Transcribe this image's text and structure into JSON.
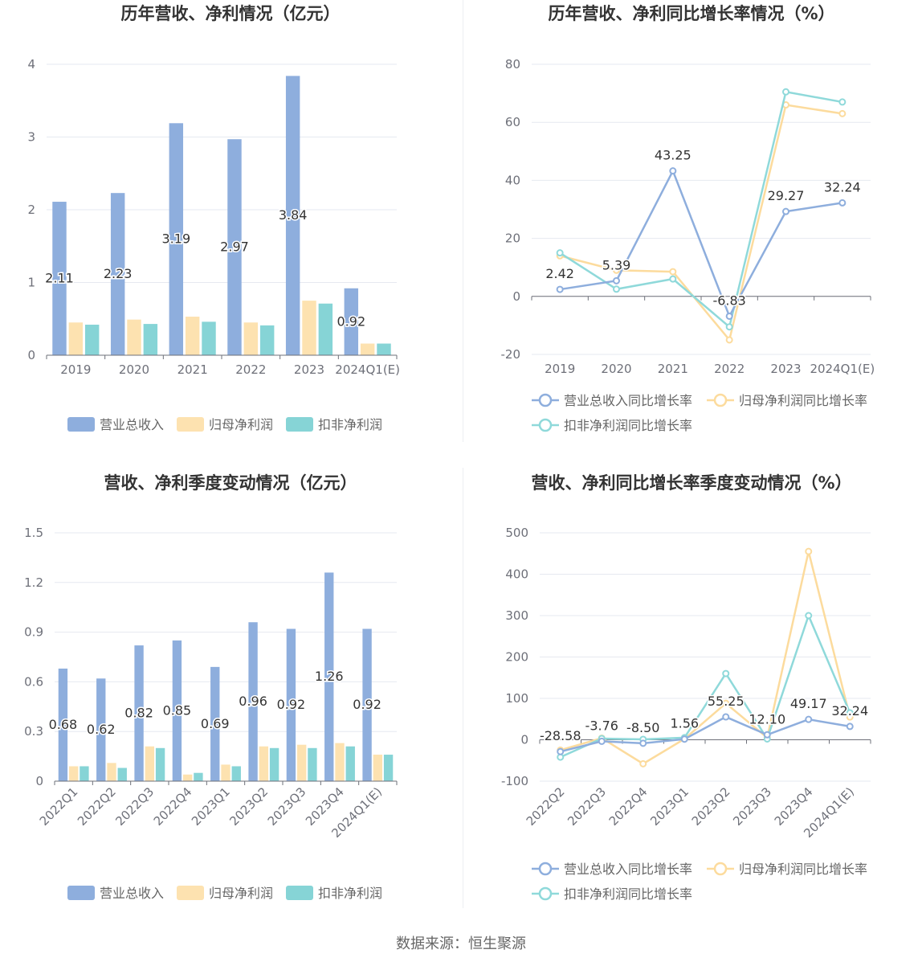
{
  "colors": {
    "revenue": "#8eaedd",
    "net_profit": "#fde2b0",
    "deducted_profit": "#86d4d6",
    "revenue_line": "#8eaedd",
    "net_profit_line": "#fcdb9d",
    "deducted_line": "#8fd9da"
  },
  "source": "数据来源：恒生聚源",
  "chart_data": [
    {
      "id": "annual-values",
      "type": "bar",
      "title": "历年营收、净利情况（亿元）",
      "categories": [
        "2019",
        "2020",
        "2021",
        "2022",
        "2023",
        "2024Q1(E)"
      ],
      "ylim": [
        0,
        4
      ],
      "yticks": [
        "0",
        "1",
        "2",
        "3",
        "4"
      ],
      "series": [
        {
          "name": "营业总收入",
          "values": [
            2.11,
            2.23,
            3.19,
            2.97,
            3.84,
            0.92
          ],
          "labels": [
            "2.11",
            "2.23",
            "3.19",
            "2.97",
            "3.84",
            "0.92"
          ]
        },
        {
          "name": "归母净利润",
          "values": [
            0.45,
            0.49,
            0.53,
            0.45,
            0.75,
            0.16
          ]
        },
        {
          "name": "扣非净利润",
          "values": [
            0.42,
            0.43,
            0.46,
            0.41,
            0.71,
            0.16
          ]
        }
      ],
      "legend": "bottom",
      "grid": true
    },
    {
      "id": "annual-growth",
      "type": "line",
      "title": "历年营收、净利同比增长率情况（%）",
      "categories": [
        "2019",
        "2020",
        "2021",
        "2022",
        "2023",
        "2024Q1(E)"
      ],
      "ylim": [
        -20,
        80
      ],
      "yticks": [
        "-20",
        "0",
        "20",
        "40",
        "60",
        "80"
      ],
      "series": [
        {
          "name": "营业总收入同比增长率",
          "values": [
            2.42,
            5.39,
            43.25,
            -6.83,
            29.27,
            32.24
          ],
          "labels": [
            "2.42",
            "5.39",
            "43.25",
            "-6.83",
            "29.27",
            "32.24"
          ]
        },
        {
          "name": "归母净利润同比增长率",
          "values": [
            14.0,
            9.0,
            8.5,
            -15.0,
            66.0,
            63.0
          ]
        },
        {
          "name": "扣非净利润同比增长率",
          "values": [
            15.0,
            2.5,
            6.0,
            -10.5,
            70.5,
            67.0
          ]
        }
      ],
      "legend": "bottom",
      "grid": true
    },
    {
      "id": "quarterly-values",
      "type": "bar",
      "title": "营收、净利季度变动情况（亿元）",
      "categories": [
        "2022Q1",
        "2022Q2",
        "2022Q3",
        "2022Q4",
        "2023Q1",
        "2023Q2",
        "2023Q3",
        "2023Q4",
        "2024Q1(E)"
      ],
      "ylim": [
        0,
        1.5
      ],
      "yticks": [
        "0",
        "0.3",
        "0.6",
        "0.9",
        "1.2",
        "1.5"
      ],
      "series": [
        {
          "name": "营业总收入",
          "values": [
            0.68,
            0.62,
            0.82,
            0.85,
            0.69,
            0.96,
            0.92,
            1.26,
            0.92
          ],
          "labels": [
            "0.68",
            "0.62",
            "0.82",
            "0.85",
            "0.69",
            "0.96",
            "0.92",
            "1.26",
            "0.92"
          ]
        },
        {
          "name": "归母净利润",
          "values": [
            0.09,
            0.11,
            0.21,
            0.04,
            0.1,
            0.21,
            0.22,
            0.23,
            0.16
          ]
        },
        {
          "name": "扣非净利润",
          "values": [
            0.09,
            0.08,
            0.2,
            0.05,
            0.09,
            0.2,
            0.2,
            0.21,
            0.16
          ]
        }
      ],
      "legend": "bottom",
      "grid": true
    },
    {
      "id": "quarterly-growth",
      "type": "line",
      "title": "营收、净利同比增长率季度变动情况（%）",
      "categories": [
        "2022Q2",
        "2022Q3",
        "2022Q4",
        "2023Q1",
        "2023Q2",
        "2023Q3",
        "2023Q4",
        "2024Q1(E)"
      ],
      "ylim": [
        -100,
        500
      ],
      "yticks": [
        "-100",
        "0",
        "100",
        "200",
        "300",
        "400",
        "500"
      ],
      "series": [
        {
          "name": "营业总收入同比增长率",
          "values": [
            -28.58,
            -3.76,
            -8.5,
            1.56,
            55.25,
            12.1,
            49.17,
            32.24
          ],
          "labels": [
            "-28.58",
            "-3.76",
            "-8.50",
            "1.56",
            "55.25",
            "12.10",
            "49.17",
            "32.24"
          ]
        },
        {
          "name": "归母净利润同比增长率",
          "values": [
            -25,
            4,
            -58,
            2,
            88,
            5,
            455,
            55
          ]
        },
        {
          "name": "扣非净利润同比增长率",
          "values": [
            -42,
            3,
            1,
            5,
            160,
            2,
            300,
            65
          ]
        }
      ],
      "legend": "bottom",
      "grid": true
    }
  ]
}
